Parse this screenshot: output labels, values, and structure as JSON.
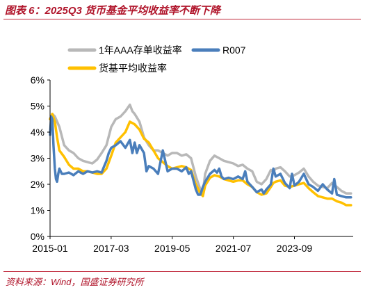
{
  "header": {
    "title": "图表 6：2025Q3 货币基金平均收益率不断下降"
  },
  "footer": {
    "source": "资料来源：Wind，国盛证券研究所"
  },
  "colors": {
    "aaa": "#b8b8b8",
    "r007": "#4a7ebb",
    "money_fund": "#ffc000",
    "accent": "#b0142a",
    "axis": "#000000"
  },
  "chart_data": {
    "type": "line",
    "title": "",
    "xlabel": "",
    "ylabel": "",
    "x_ticks": [
      "2015-01",
      "2017-03",
      "2019-05",
      "2021-07",
      "2023-09"
    ],
    "x_range": [
      2015.0,
      2025.75
    ],
    "y_ticks": [
      "0%",
      "1%",
      "2%",
      "3%",
      "4%",
      "5%",
      "6%"
    ],
    "ylim": [
      0,
      6
    ],
    "grid": false,
    "legend": "top",
    "series": [
      {
        "name": "1年AAA存单收益率",
        "color": "gray",
        "x": [
          2015.0,
          2015.08,
          2015.17,
          2015.33,
          2015.5,
          2015.67,
          2015.83,
          2016.0,
          2016.17,
          2016.33,
          2016.5,
          2016.67,
          2016.83,
          2017.0,
          2017.17,
          2017.33,
          2017.5,
          2017.67,
          2017.83,
          2017.92,
          2018.0,
          2018.17,
          2018.33,
          2018.5,
          2018.67,
          2018.83,
          2019.0,
          2019.17,
          2019.33,
          2019.5,
          2019.67,
          2019.83,
          2020.0,
          2020.17,
          2020.33,
          2020.42,
          2020.5,
          2020.67,
          2020.83,
          2021.0,
          2021.17,
          2021.33,
          2021.5,
          2021.67,
          2021.83,
          2022.0,
          2022.17,
          2022.33,
          2022.5,
          2022.67,
          2022.83,
          2022.92,
          2023.0,
          2023.17,
          2023.33,
          2023.5,
          2023.67,
          2023.83,
          2024.0,
          2024.17,
          2024.33,
          2024.5,
          2024.67,
          2024.83,
          2025.0,
          2025.17,
          2025.33,
          2025.5,
          2025.67
        ],
        "y": [
          4.5,
          4.7,
          4.6,
          4.2,
          3.5,
          3.3,
          3.2,
          3.0,
          2.9,
          2.85,
          2.8,
          2.95,
          3.2,
          3.5,
          4.2,
          4.5,
          4.6,
          4.8,
          5.05,
          4.8,
          4.7,
          4.4,
          3.8,
          3.5,
          3.3,
          3.3,
          3.2,
          3.1,
          3.2,
          3.2,
          3.1,
          3.15,
          3.0,
          2.3,
          1.8,
          1.7,
          2.4,
          2.9,
          3.1,
          3.0,
          2.9,
          2.85,
          2.8,
          2.7,
          2.75,
          2.6,
          2.5,
          2.1,
          2.0,
          2.2,
          2.55,
          2.5,
          2.6,
          2.65,
          2.5,
          2.3,
          2.35,
          2.45,
          2.6,
          2.3,
          2.1,
          1.95,
          1.9,
          1.85,
          2.05,
          1.9,
          1.75,
          1.65,
          1.65
        ]
      },
      {
        "name": "R007",
        "color": "blue",
        "x": [
          2015.0,
          2015.04,
          2015.08,
          2015.12,
          2015.17,
          2015.21,
          2015.25,
          2015.29,
          2015.33,
          2015.42,
          2015.5,
          2015.67,
          2015.83,
          2016.0,
          2016.17,
          2016.33,
          2016.5,
          2016.67,
          2016.83,
          2016.92,
          2017.0,
          2017.08,
          2017.17,
          2017.33,
          2017.5,
          2017.67,
          2017.83,
          2017.92,
          2018.0,
          2018.08,
          2018.17,
          2018.33,
          2018.42,
          2018.5,
          2018.67,
          2018.83,
          2019.0,
          2019.17,
          2019.33,
          2019.5,
          2019.67,
          2019.83,
          2019.92,
          2020.0,
          2020.17,
          2020.25,
          2020.33,
          2020.42,
          2020.5,
          2020.67,
          2020.83,
          2020.92,
          2021.0,
          2021.08,
          2021.17,
          2021.33,
          2021.5,
          2021.67,
          2021.83,
          2021.92,
          2022.0,
          2022.17,
          2022.33,
          2022.5,
          2022.58,
          2022.67,
          2022.83,
          2022.92,
          2023.0,
          2023.17,
          2023.33,
          2023.5,
          2023.58,
          2023.67,
          2023.83,
          2024.0,
          2024.17,
          2024.33,
          2024.5,
          2024.67,
          2024.83,
          2025.0,
          2025.08,
          2025.17,
          2025.33,
          2025.5,
          2025.67
        ],
        "y": [
          3.9,
          4.6,
          4.5,
          3.5,
          2.6,
          2.2,
          2.1,
          2.4,
          2.6,
          2.4,
          2.4,
          2.45,
          2.35,
          2.5,
          2.4,
          2.5,
          2.45,
          2.5,
          2.45,
          2.7,
          2.9,
          3.2,
          3.4,
          3.5,
          3.65,
          3.4,
          3.7,
          3.2,
          3.6,
          3.2,
          3.5,
          3.2,
          2.5,
          2.7,
          2.6,
          2.4,
          3.3,
          2.5,
          2.6,
          2.6,
          2.5,
          2.65,
          2.4,
          2.5,
          1.8,
          1.6,
          1.6,
          1.9,
          2.1,
          2.4,
          2.55,
          2.45,
          2.6,
          2.3,
          2.2,
          2.25,
          2.2,
          2.3,
          2.2,
          2.5,
          2.1,
          1.9,
          1.7,
          1.8,
          1.65,
          1.8,
          2.0,
          2.6,
          2.3,
          2.4,
          2.05,
          1.85,
          2.4,
          1.95,
          2.1,
          2.4,
          2.0,
          1.9,
          1.75,
          2.0,
          1.8,
          1.65,
          2.2,
          1.6,
          1.55,
          1.5,
          1.5
        ]
      },
      {
        "name": "货基平均收益率",
        "color": "yellow",
        "x": [
          2015.0,
          2015.08,
          2015.17,
          2015.25,
          2015.33,
          2015.5,
          2015.67,
          2015.83,
          2016.0,
          2016.17,
          2016.33,
          2016.5,
          2016.67,
          2016.83,
          2017.0,
          2017.17,
          2017.33,
          2017.5,
          2017.67,
          2017.83,
          2017.92,
          2018.0,
          2018.17,
          2018.33,
          2018.5,
          2018.67,
          2018.83,
          2019.0,
          2019.17,
          2019.33,
          2019.5,
          2019.67,
          2019.83,
          2020.0,
          2020.17,
          2020.33,
          2020.42,
          2020.5,
          2020.67,
          2020.83,
          2021.0,
          2021.17,
          2021.33,
          2021.5,
          2021.67,
          2021.83,
          2022.0,
          2022.17,
          2022.33,
          2022.5,
          2022.67,
          2022.83,
          2022.92,
          2023.0,
          2023.17,
          2023.33,
          2023.5,
          2023.67,
          2023.83,
          2024.0,
          2024.17,
          2024.33,
          2024.5,
          2024.67,
          2024.83,
          2025.0,
          2025.17,
          2025.33,
          2025.5,
          2025.67
        ],
        "y": [
          4.5,
          4.7,
          4.4,
          3.8,
          3.3,
          3.05,
          2.75,
          2.6,
          2.6,
          2.5,
          2.5,
          2.45,
          2.4,
          2.4,
          2.6,
          3.1,
          3.6,
          3.8,
          4.0,
          4.4,
          4.35,
          4.3,
          4.1,
          3.75,
          3.6,
          3.3,
          3.0,
          2.85,
          2.7,
          2.6,
          2.65,
          2.7,
          2.65,
          2.55,
          2.0,
          1.65,
          1.55,
          1.95,
          2.25,
          2.35,
          2.3,
          2.2,
          2.15,
          2.1,
          2.15,
          2.15,
          2.0,
          1.9,
          1.7,
          1.6,
          1.65,
          1.9,
          2.05,
          2.1,
          2.15,
          1.95,
          1.9,
          1.95,
          2.0,
          2.05,
          1.85,
          1.7,
          1.55,
          1.5,
          1.45,
          1.45,
          1.35,
          1.3,
          1.2,
          1.2
        ]
      }
    ]
  }
}
